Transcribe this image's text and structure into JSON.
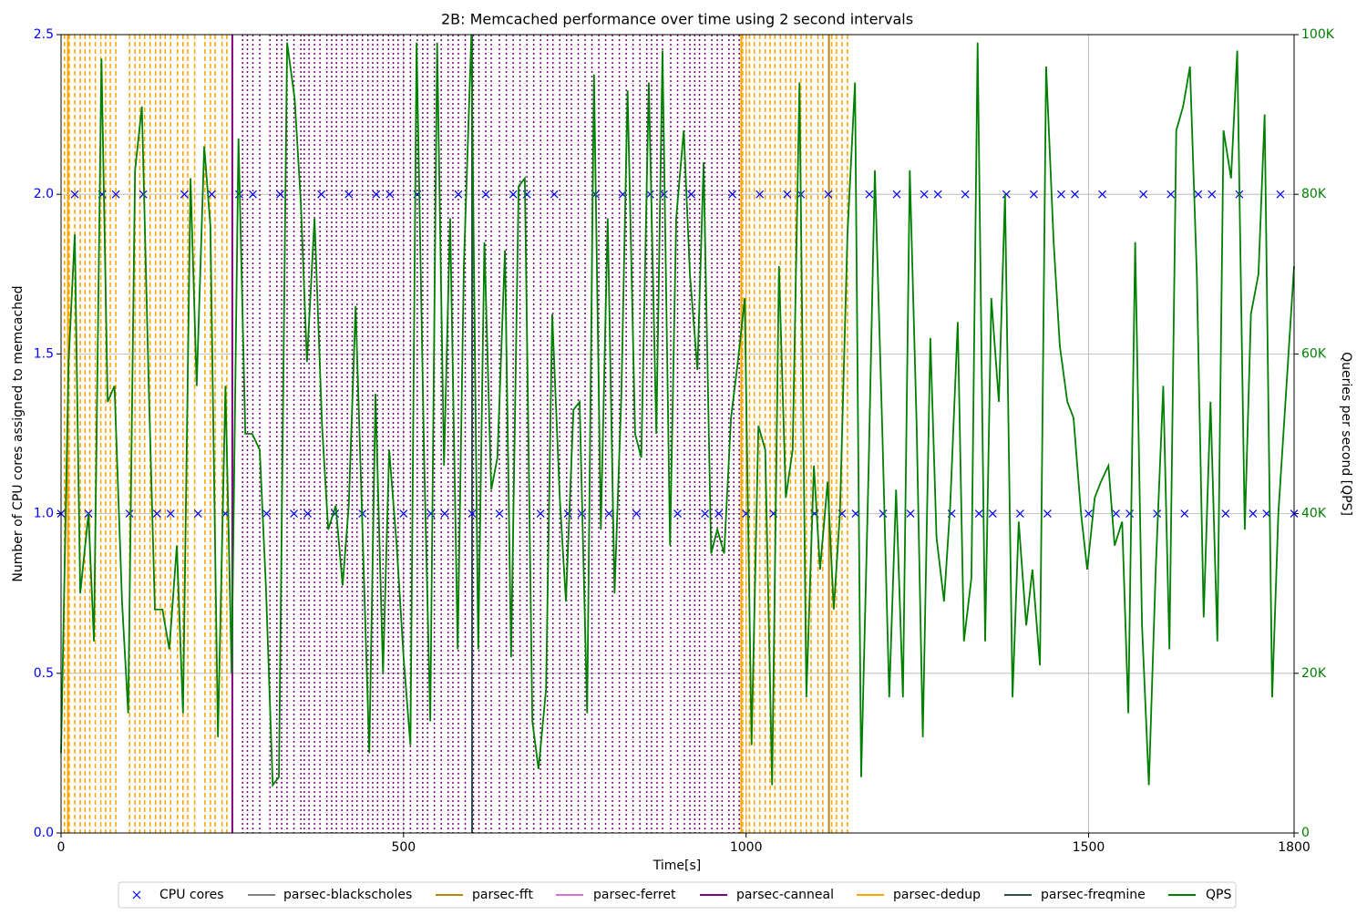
{
  "chart_data": {
    "type": "combo",
    "title": "2B: Memcached performance over time using 2 second intervals",
    "xlabel": "Time[s]",
    "ylabel": "Number of CPU cores assigned to memcached",
    "y2label": "Queries per second [QPS]",
    "xlim": [
      0,
      1800
    ],
    "xticks": [
      0,
      500,
      1000,
      1500,
      1800
    ],
    "ylim": [
      0,
      2.5
    ],
    "yticks": [
      {
        "value": 0,
        "label": "0.0"
      },
      {
        "value": 0.5,
        "label": "0.5"
      },
      {
        "value": 1,
        "label": "1.0"
      },
      {
        "value": 1.5,
        "label": "1.5"
      },
      {
        "value": 2,
        "label": "2.0"
      },
      {
        "value": 2.5,
        "label": "2.5"
      }
    ],
    "y2lim": [
      0,
      100000
    ],
    "y2ticks": [
      0,
      {
        "value": 20000,
        "label": "20K"
      },
      {
        "value": 40000,
        "label": "40K"
      },
      {
        "value": 60000,
        "label": "60K"
      },
      {
        "value": 80000,
        "label": "80K"
      },
      {
        "value": 100000,
        "label": "100K"
      }
    ],
    "grid": true,
    "legend": "bottom",
    "series": [
      {
        "name": "CPU cores",
        "kind": "scatter",
        "color": "#0000ff",
        "x": [
          0,
          20,
          40,
          60,
          80,
          100,
          120,
          140,
          160,
          180,
          200,
          220,
          240,
          260,
          280,
          300,
          320,
          340,
          360,
          380,
          400,
          420,
          440,
          460,
          480,
          500,
          520,
          540,
          560,
          580,
          600,
          620,
          640,
          660,
          680,
          700,
          720,
          740,
          760,
          780,
          800,
          820,
          840,
          860,
          880,
          900,
          920,
          940,
          960,
          980,
          1000,
          1020,
          1040,
          1060,
          1080,
          1100,
          1120,
          1140,
          1160,
          1180,
          1200,
          1220,
          1240,
          1260,
          1280,
          1300,
          1320,
          1340,
          1360,
          1380,
          1400,
          1420,
          1440,
          1460,
          1480,
          1500,
          1520,
          1540,
          1560,
          1580,
          1600,
          1620,
          1640,
          1660,
          1680,
          1700,
          1720,
          1740,
          1760,
          1780,
          1800
        ],
        "values": [
          1,
          2,
          1,
          2,
          2,
          1,
          2,
          1,
          1,
          2,
          1,
          2,
          1,
          2,
          2,
          1,
          2,
          1,
          1,
          2,
          1,
          2,
          1,
          2,
          2,
          1,
          2,
          1,
          1,
          2,
          1,
          2,
          1,
          2,
          2,
          1,
          2,
          1,
          1,
          2,
          1,
          2,
          1,
          2,
          2,
          1,
          2,
          1,
          1,
          2,
          1,
          2,
          1,
          2,
          2,
          1,
          2,
          1,
          1,
          2,
          1,
          2,
          1,
          2,
          2,
          1,
          2,
          1,
          1,
          2,
          1,
          2,
          1,
          2,
          2,
          1,
          2,
          1,
          1,
          2,
          1,
          2,
          1,
          2,
          2,
          1,
          2,
          1,
          1,
          2,
          1
        ]
      },
      {
        "name": "parsec-blackscholes",
        "kind": "vlines",
        "color": "#808080",
        "linestyle": "solid",
        "x": [],
        "solid_x": []
      },
      {
        "name": "parsec-fft",
        "kind": "vlines",
        "color": "#b8860b",
        "linestyle": "dashed",
        "x": [],
        "solid_x": [
          1121
        ]
      },
      {
        "name": "parsec-ferret",
        "kind": "vlines",
        "color": "#da70d6",
        "linestyle": "dotted",
        "x": [],
        "solid_x": []
      },
      {
        "name": "parsec-canneal",
        "kind": "vlines",
        "color": "#800080",
        "linestyle": "dotted",
        "x": [
          265,
          272,
          280,
          290,
          305,
          315,
          322,
          330,
          340,
          350,
          355,
          362,
          370,
          378,
          388,
          395,
          402,
          410,
          418,
          425,
          432,
          440,
          448,
          455,
          462,
          470,
          478,
          485,
          492,
          500,
          510,
          520,
          528,
          535,
          545,
          555,
          565,
          572,
          580,
          590,
          602,
          610,
          620,
          628,
          640,
          650,
          660,
          670,
          680,
          690,
          700,
          710,
          718,
          728,
          738,
          745,
          755,
          765,
          775,
          785,
          795,
          805,
          815,
          825,
          835,
          845,
          855,
          862,
          870,
          878,
          890,
          900,
          910,
          918,
          925,
          932,
          940,
          950,
          958,
          965,
          975,
          982,
          990
        ],
        "solid_x": [
          250
        ]
      },
      {
        "name": "parsec-dedup",
        "kind": "vlines",
        "color": "#ffa500",
        "linestyle": "dashed",
        "x": [
          5,
          12,
          20,
          28,
          35,
          42,
          50,
          58,
          65,
          72,
          80,
          100,
          108,
          115,
          122,
          130,
          138,
          145,
          152,
          160,
          170,
          178,
          185,
          195,
          210,
          218,
          225,
          235,
          242,
          995,
          1000,
          1005,
          1012,
          1020,
          1028,
          1035,
          1042,
          1050,
          1058,
          1065,
          1072,
          1080,
          1088,
          1095,
          1105,
          1112,
          1125,
          1132,
          1140,
          1148
        ],
        "solid_x": [
          10,
          993
        ]
      },
      {
        "name": "parsec-freqmine",
        "kind": "vlines",
        "color": "#2f4f4f",
        "linestyle": "solid",
        "x": [],
        "solid_x": [
          600
        ]
      },
      {
        "name": "QPS",
        "kind": "line",
        "axis": "y2",
        "color": "#008000",
        "x": [
          0,
          11,
          20,
          28,
          40,
          48,
          59,
          68,
          78,
          89,
          98,
          108,
          118,
          128,
          137,
          148,
          158,
          169,
          178,
          189,
          198,
          209,
          218,
          229,
          240,
          249,
          259,
          269,
          279,
          290,
          299,
          309,
          318,
          330,
          341,
          350,
          359,
          370,
          381,
          390,
          401,
          411,
          420,
          430,
          440,
          450,
          459,
          470,
          479,
          490,
          500,
          510,
          519,
          530,
          539,
          549,
          559,
          568,
          579,
          588,
          599,
          609,
          618,
          628,
          637,
          648,
          657,
          668,
          677,
          688,
          697,
          708,
          717,
          728,
          737,
          748,
          757,
          768,
          778,
          788,
          798,
          808,
          818,
          827,
          838,
          847,
          858,
          869,
          878,
          889,
          898,
          909,
          918,
          929,
          938,
          949,
          958,
          968,
          978,
          988,
          998,
          1008,
          1018,
          1028,
          1038,
          1048,
          1058,
          1068,
          1078,
          1088,
          1099,
          1108,
          1119,
          1128,
          1137,
          1148,
          1159,
          1168,
          1179,
          1188,
          1199,
          1209,
          1219,
          1229,
          1239,
          1249,
          1258,
          1269,
          1278,
          1289,
          1298,
          1309,
          1318,
          1329,
          1338,
          1349,
          1358,
          1369,
          1378,
          1389,
          1398,
          1409,
          1418,
          1429,
          1438,
          1449,
          1458,
          1469,
          1478,
          1489,
          1498,
          1509,
          1518,
          1529,
          1538,
          1549,
          1558,
          1568,
          1578,
          1588,
          1598,
          1609,
          1618,
          1628,
          1638,
          1648,
          1658,
          1668,
          1678,
          1688,
          1697,
          1708,
          1717,
          1728,
          1737,
          1748,
          1757,
          1768,
          1777,
          1800
        ],
        "values": [
          10000,
          59000,
          75000,
          30000,
          40000,
          24000,
          97000,
          54000,
          56000,
          29000,
          15000,
          83000,
          91000,
          56000,
          28000,
          28000,
          23000,
          36000,
          15000,
          82000,
          56000,
          86000,
          76000,
          12000,
          56000,
          20000,
          87000,
          50000,
          50000,
          48000,
          31000,
          6000,
          7000,
          99000,
          92000,
          79000,
          59000,
          77000,
          51000,
          38000,
          41000,
          31000,
          41000,
          66000,
          38000,
          10000,
          55000,
          20000,
          48000,
          36000,
          22000,
          11000,
          99000,
          47000,
          14000,
          99000,
          46000,
          77000,
          23000,
          71000,
          100000,
          23000,
          74000,
          43000,
          47000,
          73000,
          22000,
          81000,
          82000,
          14000,
          8000,
          18000,
          65000,
          42000,
          29000,
          53000,
          54000,
          15000,
          95000,
          38000,
          77000,
          30000,
          55000,
          93000,
          50000,
          47000,
          94000,
          50000,
          98000,
          36000,
          77000,
          88000,
          70000,
          58000,
          84000,
          35000,
          38000,
          35000,
          52000,
          59000,
          67000,
          11000,
          51000,
          48000,
          6000,
          71000,
          42000,
          48000,
          94000,
          17000,
          46000,
          33000,
          44000,
          28000,
          40000,
          75000,
          94000,
          7000,
          46000,
          83000,
          50000,
          17000,
          43000,
          17000,
          83000,
          51000,
          12000,
          62000,
          37000,
          29000,
          41000,
          64000,
          24000,
          32000,
          99000,
          24000,
          67000,
          54000,
          80000,
          17000,
          39000,
          26000,
          33000,
          21000,
          96000,
          74000,
          61000,
          54000,
          52000,
          40000,
          33000,
          42000,
          44000,
          46000,
          36000,
          39000,
          15000,
          74000,
          26000,
          6000,
          33000,
          56000,
          23000,
          88000,
          91000,
          96000,
          70000,
          27000,
          54000,
          24000,
          88000,
          82000,
          98000,
          38000,
          65000,
          70000,
          90000,
          17000,
          40000,
          71000
        ]
      }
    ]
  }
}
